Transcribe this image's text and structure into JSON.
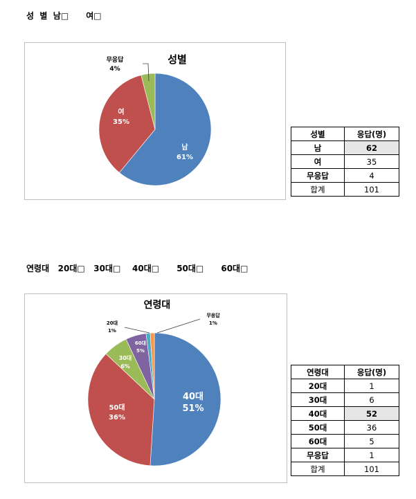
{
  "gender": {
    "question": "성  별  남□      여□",
    "chart_data": {
      "type": "pie",
      "title": "성별",
      "slices": [
        {
          "label": "남",
          "value": 61,
          "pct_label": "61%",
          "color": "#4f81bd"
        },
        {
          "label": "여",
          "value": 35,
          "pct_label": "35%",
          "color": "#c0504d"
        },
        {
          "label": "무응답",
          "value": 4,
          "pct_label": "4%",
          "color": "#9bbb59"
        }
      ]
    },
    "table": {
      "headers": [
        "성별",
        "응답(명)"
      ],
      "rows": [
        {
          "label": "남",
          "value": "62",
          "highlight": true
        },
        {
          "label": "여",
          "value": "35",
          "highlight": false
        },
        {
          "label": "무응답",
          "value": "4",
          "highlight": false
        },
        {
          "label": "합계",
          "value": "101",
          "highlight": false
        }
      ]
    }
  },
  "age": {
    "question": "연령대   20대□   30대□    40대□      50대□      60대□",
    "chart_data": {
      "type": "pie",
      "title": "연령대",
      "slices": [
        {
          "label": "40대",
          "value": 51,
          "pct_label": "51%",
          "color": "#4f81bd"
        },
        {
          "label": "50대",
          "value": 36,
          "pct_label": "36%",
          "color": "#c0504d"
        },
        {
          "label": "30대",
          "value": 6,
          "pct_label": "6%",
          "color": "#9bbb59"
        },
        {
          "label": "60대",
          "value": 5,
          "pct_label": "5%",
          "color": "#8064a2"
        },
        {
          "label": "20대",
          "value": 1,
          "pct_label": "1%",
          "color": "#4bacc6"
        },
        {
          "label": "무응답",
          "value": 1,
          "pct_label": "1%",
          "color": "#f79646"
        }
      ]
    },
    "table": {
      "headers": [
        "연령대",
        "응답(명)"
      ],
      "rows": [
        {
          "label": "20대",
          "value": "1",
          "highlight": false
        },
        {
          "label": "30대",
          "value": "6",
          "highlight": false
        },
        {
          "label": "40대",
          "value": "52",
          "highlight": true
        },
        {
          "label": "50대",
          "value": "36",
          "highlight": false
        },
        {
          "label": "60대",
          "value": "5",
          "highlight": false
        },
        {
          "label": "무응답",
          "value": "1",
          "highlight": false
        },
        {
          "label": "합계",
          "value": "101",
          "highlight": false
        }
      ]
    }
  }
}
